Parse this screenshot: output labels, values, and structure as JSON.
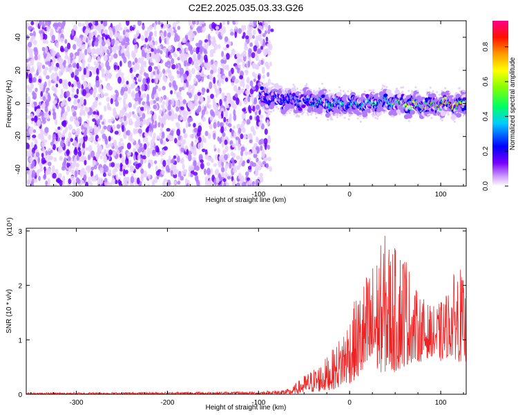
{
  "title": "C2E2.2025.035.03.33.G26",
  "chart_data": [
    {
      "type": "heatmap",
      "title": "C2E2.2025.035.03.33.G26",
      "xlabel": "Height of straight line (km)",
      "ylabel": "Frequency (Hz)",
      "xlim": [
        -355,
        128
      ],
      "ylim": [
        -50,
        50
      ],
      "x_ticks": [
        "-300",
        "-200",
        "-100",
        "0",
        "100"
      ],
      "x_tick_values": [
        -300,
        -200,
        -100,
        0,
        100
      ],
      "y_ticks": [
        "40",
        "20",
        "0",
        "-20",
        "-40"
      ],
      "y_tick_values": [
        40,
        20,
        0,
        -20,
        -40
      ],
      "colorbar": {
        "label": "Normalized spectral amplitude",
        "range": [
          0,
          0.95
        ],
        "ticks": [
          "0.0",
          "0.2",
          "0.4",
          "0.6",
          "0.8"
        ],
        "tick_values": [
          0.0,
          0.2,
          0.4,
          0.6,
          0.8
        ],
        "colors": [
          "#ffffff",
          "#9933ff",
          "#0000ff",
          "#00ffff",
          "#00ff00",
          "#ffff00",
          "#ff8800",
          "#ff0000",
          "#ff0099"
        ]
      },
      "noise_region_x": [
        -355,
        -88
      ],
      "signal_track": {
        "x": [
          -98,
          -80,
          -60,
          -40,
          -20,
          0,
          20,
          40,
          60,
          80,
          100,
          128
        ],
        "frequency": [
          4,
          3,
          2,
          1,
          0,
          -1,
          0,
          1,
          0,
          -1,
          -1,
          -1
        ],
        "peak_amplitude": [
          0.35,
          0.4,
          0.45,
          0.55,
          0.6,
          0.55,
          0.6,
          0.55,
          0.75,
          0.85,
          0.9,
          0.9
        ]
      }
    },
    {
      "type": "line",
      "xlabel": "Height of straight line (km)",
      "ylabel": "SNR (10 * v/v)",
      "multiplier_label": "(x10⁴)",
      "xlim": [
        -355,
        128
      ],
      "ylim": [
        0,
        3.05
      ],
      "x_ticks": [
        "-300",
        "-200",
        "-100",
        "0",
        "100"
      ],
      "x_tick_values": [
        -300,
        -200,
        -100,
        0,
        100
      ],
      "y_ticks": [
        "3",
        "2",
        "1",
        "0"
      ],
      "y_tick_values": [
        3,
        2,
        1,
        0
      ],
      "color": "#ee2222",
      "envelope": {
        "x": [
          -355,
          -100,
          -65,
          -50,
          -30,
          -15,
          0,
          10,
          20,
          30,
          40,
          50,
          60,
          70,
          80,
          90,
          100,
          110,
          120,
          128
        ],
        "min": [
          0.0,
          0.0,
          0.0,
          0.02,
          0.05,
          0.1,
          0.2,
          0.3,
          0.3,
          0.4,
          0.4,
          0.4,
          0.5,
          0.6,
          0.6,
          0.7,
          0.6,
          0.7,
          0.6,
          0.6
        ],
        "max": [
          0.03,
          0.05,
          0.1,
          0.35,
          0.6,
          0.9,
          1.5,
          1.9,
          2.3,
          2.6,
          3.0,
          2.7,
          2.8,
          2.0,
          1.8,
          1.6,
          1.7,
          2.0,
          2.5,
          1.8
        ]
      }
    }
  ]
}
